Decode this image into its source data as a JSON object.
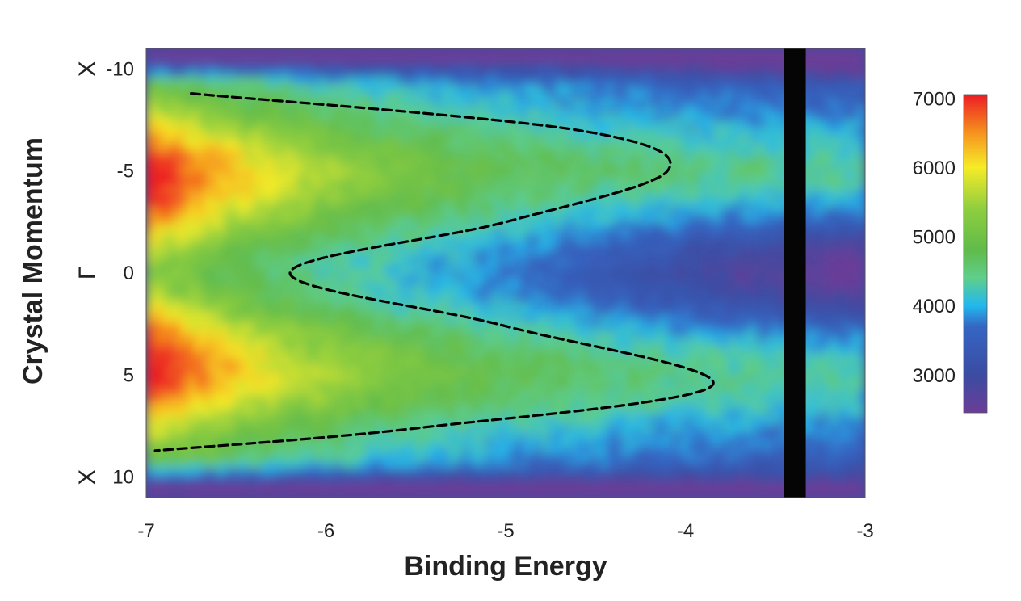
{
  "chart_data": {
    "type": "heatmap",
    "xlabel": "Binding Energy",
    "ylabel": "Crystal Momentum",
    "xlim": [
      -7,
      -3
    ],
    "ylim": [
      11,
      -11
    ],
    "x_ticks": [
      {
        "value": -7,
        "label": "-7"
      },
      {
        "value": -6,
        "label": "-6"
      },
      {
        "value": -5,
        "label": "-5"
      },
      {
        "value": -4,
        "label": "-4"
      },
      {
        "value": -3,
        "label": "-3"
      }
    ],
    "y_ticks": [
      {
        "value": -10,
        "label": "-10"
      },
      {
        "value": -5,
        "label": "-5"
      },
      {
        "value": 0,
        "label": "0"
      },
      {
        "value": 5,
        "label": "5"
      },
      {
        "value": 10,
        "label": "10"
      }
    ],
    "y_symbols": [
      {
        "value": -10,
        "label": "X"
      },
      {
        "value": 0,
        "label": "Γ"
      },
      {
        "value": 10,
        "label": "X"
      }
    ],
    "colorbar": {
      "min": 2450,
      "max": 7050,
      "ticks": [
        {
          "value": 3000,
          "label": "3000"
        },
        {
          "value": 4000,
          "label": "4000"
        },
        {
          "value": 5000,
          "label": "5000"
        },
        {
          "value": 6000,
          "label": "6000"
        },
        {
          "value": 7000,
          "label": "7000"
        }
      ],
      "colors": [
        {
          "value": 2450,
          "color": "#6a3d97"
        },
        {
          "value": 3000,
          "color": "#3b4ca2"
        },
        {
          "value": 3700,
          "color": "#3566c4"
        },
        {
          "value": 4000,
          "color": "#22b8ef"
        },
        {
          "value": 4400,
          "color": "#5fcf8c"
        },
        {
          "value": 4800,
          "color": "#60bb4a"
        },
        {
          "value": 5400,
          "color": "#8fce3f"
        },
        {
          "value": 6000,
          "color": "#f6ec27"
        },
        {
          "value": 6500,
          "color": "#f6921e"
        },
        {
          "value": 7050,
          "color": "#ec1c24"
        }
      ]
    },
    "dashed_curve": {
      "color": "#000000",
      "points": [
        {
          "x": -6.75,
          "y": -8.8
        },
        {
          "x": -4.6,
          "y": -7.0
        },
        {
          "x": -4.1,
          "y": -5.0
        },
        {
          "x": -5.0,
          "y": -2.5
        },
        {
          "x": -6.2,
          "y": 0.0
        },
        {
          "x": -5.0,
          "y": 2.6
        },
        {
          "x": -3.85,
          "y": 5.5
        },
        {
          "x": -5.5,
          "y": 7.6
        },
        {
          "x": -6.95,
          "y": 8.7
        }
      ]
    },
    "black_band": {
      "x0": -3.45,
      "x1": -3.33,
      "color": "#050505"
    },
    "grid": false
  }
}
